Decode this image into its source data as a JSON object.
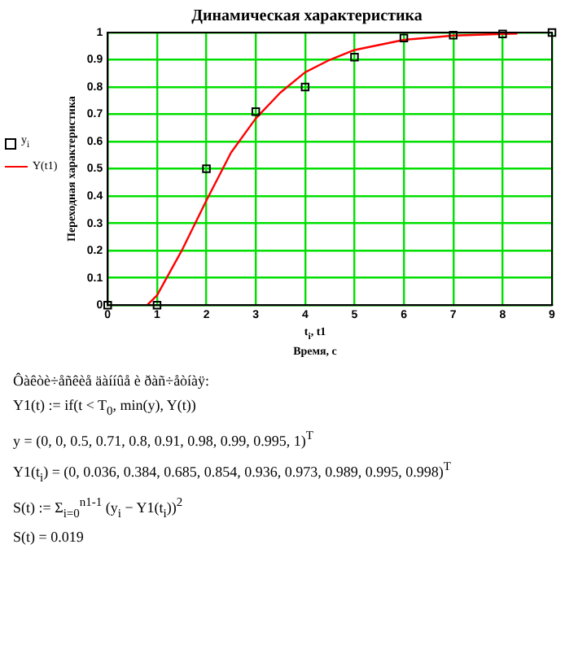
{
  "chart_data": {
    "type": "scatter",
    "title": "Динамическая характеристика",
    "xlabel": "t$_{i}$, t1\nВремя, с",
    "ylabel": "Переходная характеристика",
    "xlim": [
      0,
      9
    ],
    "xticks": [
      0,
      1,
      2,
      3,
      4,
      5,
      6,
      7,
      8,
      9
    ],
    "ylim": [
      0,
      1
    ],
    "yticks": [
      0,
      0.1,
      0.2,
      0.3,
      0.4,
      0.5,
      0.6,
      0.7,
      0.8,
      0.9,
      1
    ],
    "grid": true,
    "legend": "left",
    "series": [
      {
        "name": "y$_{i}$",
        "marker": "square",
        "color": "#000000",
        "x": [
          0,
          1,
          2,
          3,
          4,
          5,
          6,
          7,
          8,
          9
        ],
        "values": [
          0,
          0,
          0.5,
          0.71,
          0.8,
          0.91,
          0.98,
          0.99,
          0.995,
          1
        ]
      },
      {
        "name": "Y(t1)",
        "type": "line",
        "marker": "none",
        "color": "#ff0000",
        "x": [
          0.8,
          1,
          1.5,
          2,
          2.5,
          3,
          3.5,
          4,
          4.5,
          5,
          6,
          7,
          8,
          8.3
        ],
        "values": [
          0,
          0.036,
          0.2,
          0.384,
          0.56,
          0.685,
          0.78,
          0.854,
          0.9,
          0.936,
          0.973,
          0.989,
          0.995,
          0.996
        ]
      }
    ],
    "annotations": [
      "Ôàêòè÷åñêèå äàííûå è ðàñ÷åòíàÿ:",
      "Y1(t) := if(t < T$_{0}$, min(y), Y(t))",
      "y = (0, 0, 0.5, 0.71, 0.8, 0.91, 0.98, 0.99, 0.995, 1)$^{T}$",
      "Y1(t$_{i}$) = (0, 0.036, 0.384, 0.685, 0.854, 0.936, 0.973, 0.989, 0.995, 0.998)$^{T}$",
      "S(t) := Σ$_{i=0}$$^{n1-1}$ (y$_{i}$ − Y1(t$_{i}$))$^{2}$",
      "S(t) = 0.019"
    ]
  }
}
